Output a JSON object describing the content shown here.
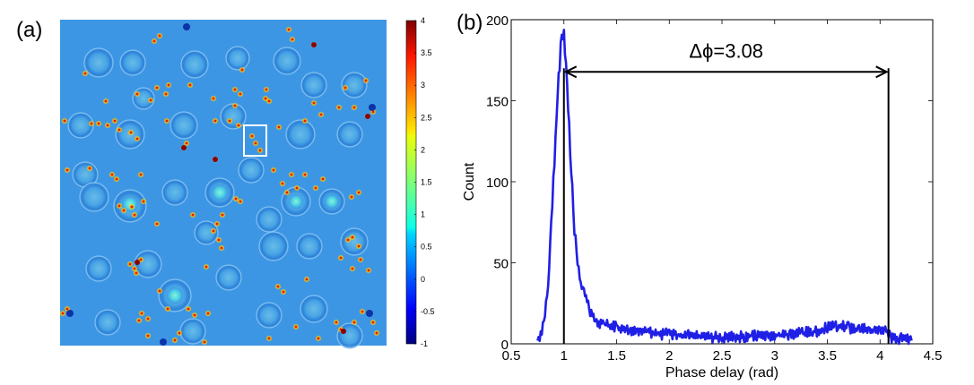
{
  "panels": {
    "a_label": "(a)",
    "b_label": "(b)"
  },
  "colorbar": {
    "colormap": "jet",
    "min": -1,
    "max": 4,
    "ticks": [
      "4",
      "3.5",
      "3",
      "2.5",
      "2",
      "1.5",
      "1",
      "0.5",
      "0",
      "-0.5",
      "-1"
    ]
  },
  "chart_data": [
    {
      "type": "heatmap",
      "description_visible": "phase image",
      "colorbar_range": [
        -1,
        4
      ],
      "highlight_box": true
    },
    {
      "type": "line",
      "title": "",
      "xlabel": "Phase delay (rad)",
      "ylabel": "Count",
      "xlim": [
        0.5,
        4.5
      ],
      "ylim": [
        0,
        200
      ],
      "xticks": [
        "0.5",
        "1",
        "1.5",
        "2",
        "2.5",
        "3",
        "3.5",
        "4",
        "4.5"
      ],
      "yticks": [
        "0",
        "50",
        "100",
        "150",
        "200"
      ],
      "grid": false,
      "series": [
        {
          "color": "#1f1fe6",
          "x": [
            0.75,
            0.8,
            0.85,
            0.9,
            0.95,
            0.98,
            1.0,
            1.03,
            1.06,
            1.1,
            1.15,
            1.2,
            1.25,
            1.3,
            1.4,
            1.5,
            1.6,
            1.7,
            1.8,
            1.9,
            2.0,
            2.2,
            2.4,
            2.6,
            2.8,
            3.0,
            3.2,
            3.4,
            3.5,
            3.6,
            3.7,
            3.8,
            3.9,
            4.0,
            4.05,
            4.1,
            4.2,
            4.3
          ],
          "y": [
            2,
            10,
            35,
            100,
            165,
            188,
            190,
            160,
            120,
            70,
            40,
            30,
            20,
            14,
            12,
            10,
            8,
            8,
            7,
            6,
            6,
            5,
            4,
            4,
            5,
            5,
            6,
            8,
            10,
            11,
            10,
            9,
            9,
            8,
            10,
            4,
            3,
            2
          ]
        }
      ],
      "vlines": [
        1.0,
        4.08
      ],
      "annotation": {
        "text": "Δϕ=3.08",
        "x_from": 1.0,
        "x_to": 4.08,
        "y": 170
      }
    }
  ]
}
